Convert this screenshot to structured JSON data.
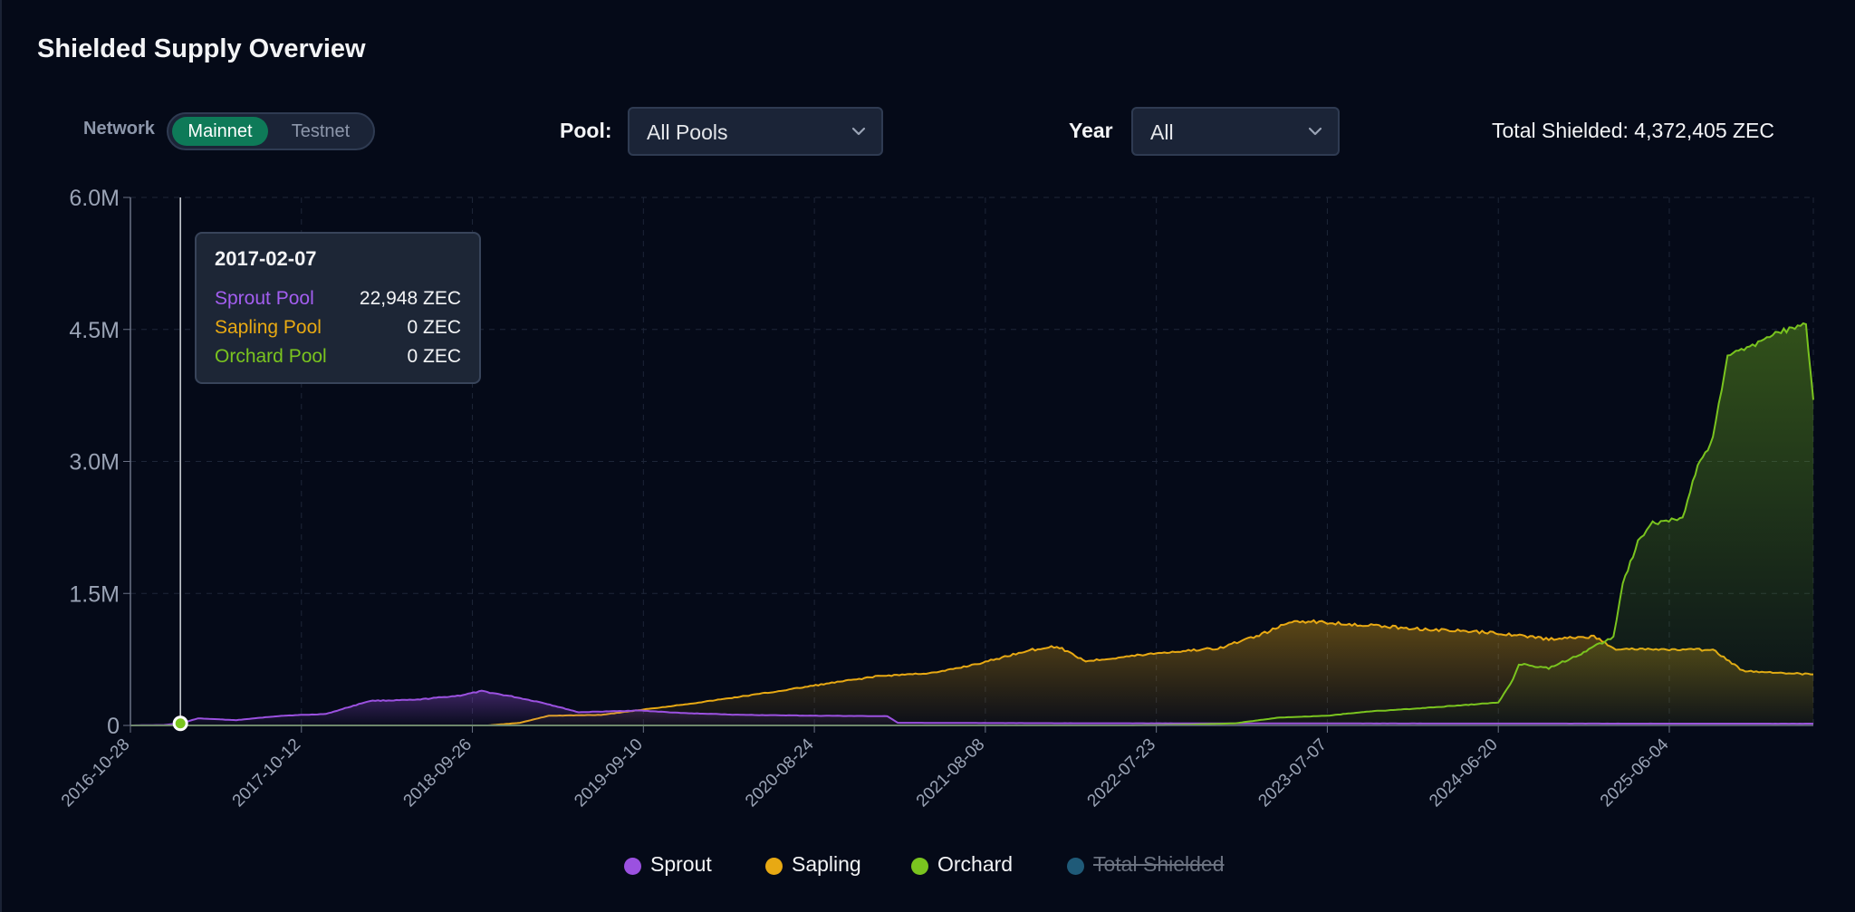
{
  "header": {
    "title": "Shielded Supply Overview"
  },
  "controls": {
    "network_label": "Network",
    "network_options": [
      "Mainnet",
      "Testnet"
    ],
    "network_selected": "Mainnet",
    "pool_label": "Pool:",
    "pool_value": "All Pools",
    "year_label": "Year",
    "year_value": "All",
    "total_label": "Total Shielded: 4,372,405 ZEC"
  },
  "tooltip": {
    "date": "2017-02-07",
    "rows": [
      {
        "name": "Sprout Pool",
        "value": "22,948 ZEC"
      },
      {
        "name": "Sapling Pool",
        "value": "0 ZEC"
      },
      {
        "name": "Orchard Pool",
        "value": "0 ZEC"
      }
    ]
  },
  "legend": [
    {
      "label": "Sprout",
      "color": "#9b51e0",
      "active": true
    },
    {
      "label": "Sapling",
      "color": "#e8a913",
      "active": true
    },
    {
      "label": "Orchard",
      "color": "#7ac41f",
      "active": true
    },
    {
      "label": "Total Shielded",
      "color": "#1f5a78",
      "active": false
    }
  ],
  "chart_data": {
    "type": "area",
    "title": "Shielded Supply Overview",
    "xlabel": "",
    "ylabel": "",
    "x_range": [
      "2016-10-28",
      "2026-03-25"
    ],
    "ylim": [
      0,
      6000000
    ],
    "y_ticks": [
      0,
      1500000,
      3000000,
      4500000,
      6000000
    ],
    "y_tick_labels": [
      "0",
      "1.5M",
      "3.0M",
      "4.5M",
      "6.0M"
    ],
    "x_ticks": [
      "2016-10-28",
      "2017-10-12",
      "2018-09-26",
      "2019-09-10",
      "2020-08-24",
      "2021-08-08",
      "2022-07-23",
      "2023-07-07",
      "2024-06-20",
      "2025-06-04"
    ],
    "grid": true,
    "legend_position": "bottom",
    "hover_date": "2017-02-07",
    "series": [
      {
        "name": "Sprout",
        "color": "#9b51e0",
        "points": [
          [
            "2016-10-28",
            0
          ],
          [
            "2017-01-05",
            5000
          ],
          [
            "2017-02-07",
            22948
          ],
          [
            "2017-03-15",
            80000
          ],
          [
            "2017-06-01",
            60000
          ],
          [
            "2017-09-01",
            110000
          ],
          [
            "2017-12-01",
            130000
          ],
          [
            "2018-03-01",
            280000
          ],
          [
            "2018-06-01",
            290000
          ],
          [
            "2018-09-01",
            340000
          ],
          [
            "2018-10-15",
            390000
          ],
          [
            "2018-12-15",
            330000
          ],
          [
            "2019-02-15",
            260000
          ],
          [
            "2019-05-01",
            150000
          ],
          [
            "2019-09-01",
            170000
          ],
          [
            "2019-12-01",
            140000
          ],
          [
            "2020-04-01",
            120000
          ],
          [
            "2020-09-01",
            110000
          ],
          [
            "2021-01-20",
            105000
          ],
          [
            "2021-02-10",
            30000
          ],
          [
            "2022-01-01",
            25000
          ],
          [
            "2024-01-01",
            22000
          ],
          [
            "2026-03-25",
            20000
          ]
        ]
      },
      {
        "name": "Sapling",
        "color": "#e8a913",
        "points": [
          [
            "2016-10-28",
            0
          ],
          [
            "2018-10-28",
            0
          ],
          [
            "2019-01-01",
            30000
          ],
          [
            "2019-03-01",
            110000
          ],
          [
            "2019-06-15",
            120000
          ],
          [
            "2019-09-10",
            180000
          ],
          [
            "2020-01-01",
            260000
          ],
          [
            "2020-06-01",
            380000
          ],
          [
            "2020-09-01",
            460000
          ],
          [
            "2021-01-01",
            560000
          ],
          [
            "2021-05-01",
            600000
          ],
          [
            "2021-08-08",
            720000
          ],
          [
            "2021-11-01",
            850000
          ],
          [
            "2022-01-01",
            900000
          ],
          [
            "2022-03-01",
            730000
          ],
          [
            "2022-07-23",
            820000
          ],
          [
            "2022-12-01",
            880000
          ],
          [
            "2023-03-01",
            1050000
          ],
          [
            "2023-05-01",
            1190000
          ],
          [
            "2023-09-01",
            1150000
          ],
          [
            "2024-01-01",
            1100000
          ],
          [
            "2024-06-20",
            1050000
          ],
          [
            "2024-10-01",
            980000
          ],
          [
            "2025-01-01",
            1010000
          ],
          [
            "2025-02-15",
            870000
          ],
          [
            "2025-06-04",
            860000
          ],
          [
            "2025-09-01",
            860000
          ],
          [
            "2025-11-01",
            620000
          ],
          [
            "2026-03-25",
            580000
          ]
        ]
      },
      {
        "name": "Orchard",
        "color": "#7ac41f",
        "points": [
          [
            "2016-10-28",
            0
          ],
          [
            "2022-05-31",
            0
          ],
          [
            "2022-10-01",
            8000
          ],
          [
            "2023-01-01",
            25000
          ],
          [
            "2023-04-01",
            90000
          ],
          [
            "2023-07-07",
            110000
          ],
          [
            "2023-10-01",
            160000
          ],
          [
            "2024-01-01",
            190000
          ],
          [
            "2024-06-20",
            260000
          ],
          [
            "2024-07-20",
            520000
          ],
          [
            "2024-08-01",
            700000
          ],
          [
            "2024-10-01",
            650000
          ],
          [
            "2024-12-01",
            800000
          ],
          [
            "2025-01-01",
            900000
          ],
          [
            "2025-02-10",
            1000000
          ],
          [
            "2025-03-01",
            1600000
          ],
          [
            "2025-04-01",
            2100000
          ],
          [
            "2025-05-01",
            2300000
          ],
          [
            "2025-07-01",
            2350000
          ],
          [
            "2025-08-01",
            2950000
          ],
          [
            "2025-09-01",
            3250000
          ],
          [
            "2025-10-01",
            4200000
          ],
          [
            "2025-11-15",
            4300000
          ],
          [
            "2026-01-01",
            4450000
          ],
          [
            "2026-03-10",
            4550000
          ],
          [
            "2026-03-25",
            3700000
          ]
        ]
      }
    ]
  }
}
